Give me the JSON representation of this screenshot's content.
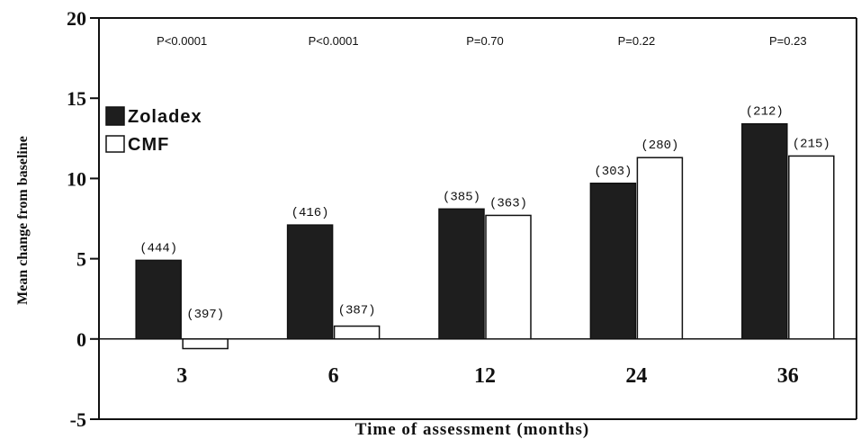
{
  "chart_data": {
    "type": "bar",
    "xlabel": "Time of assessment (months)",
    "ylabel": "Mean change from baseline",
    "categories": [
      "3",
      "6",
      "12",
      "24",
      "36"
    ],
    "ylim": [
      -5,
      20
    ],
    "yticks": [
      "20",
      "15",
      "10",
      "5",
      "0",
      "-5"
    ],
    "series": [
      {
        "name": "Zoladex",
        "values": [
          4.9,
          7.1,
          8.1,
          9.7,
          13.4
        ],
        "n_labels": [
          "(444)",
          "(416)",
          "(385)",
          "(303)",
          "(212)"
        ],
        "color": "#1e1e1e"
      },
      {
        "name": "CMF",
        "values": [
          -0.6,
          0.8,
          7.7,
          11.3,
          11.4
        ],
        "n_labels": [
          "(397)",
          "(387)",
          "(363)",
          "(280)",
          "(215)"
        ],
        "color": "#ffffff"
      }
    ],
    "p_values": [
      "P<0.0001",
      "P<0.0001",
      "P=0.70",
      "P=0.22",
      "P=0.23"
    ],
    "legend_position": "top-left",
    "grid": false
  }
}
